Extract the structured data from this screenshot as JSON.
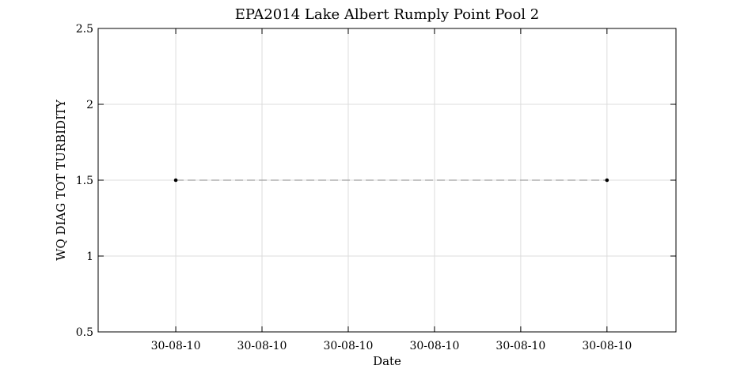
{
  "chart_data": {
    "type": "line",
    "title": "EPA2014 Lake Albert Rumply Point Pool 2",
    "xlabel": "Date",
    "ylabel": "WQ DIAG TOT TURBIDITY",
    "x_tick_labels": [
      "30-08-10",
      "30-08-10",
      "30-08-10",
      "30-08-10",
      "30-08-10",
      "30-08-10"
    ],
    "y_ticks": [
      0.5,
      1,
      1.5,
      2,
      2.5
    ],
    "y_tick_labels": [
      "0.5",
      "1",
      "1.5",
      "2",
      "2.5"
    ],
    "ylim": [
      0.5,
      2.5
    ],
    "x_positions": [
      0,
      1,
      2,
      3,
      4,
      5
    ],
    "xlim": [
      -0.9,
      5.8
    ],
    "grid": true,
    "series": [
      {
        "x": [
          0,
          5
        ],
        "values": [
          1.5,
          1.5
        ],
        "line_style": "dashed",
        "line_color": "#a0a0a0",
        "marker_color": "#000000"
      }
    ]
  }
}
